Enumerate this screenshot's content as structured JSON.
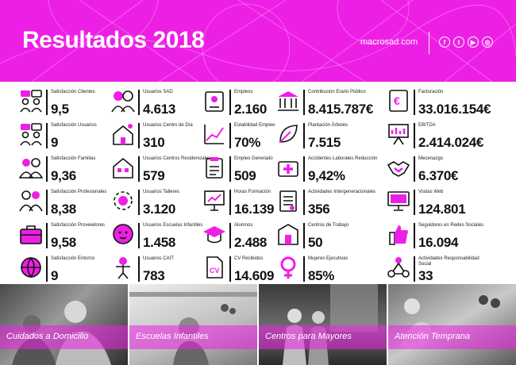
{
  "header": {
    "title": "Resultados 2018",
    "website": "macrosad.com",
    "social": [
      {
        "icon": "facebook-icon",
        "glyph": "f"
      },
      {
        "icon": "twitter-icon",
        "glyph": "t"
      },
      {
        "icon": "youtube-icon",
        "glyph": "▶"
      },
      {
        "icon": "instagram-icon",
        "glyph": "◎"
      }
    ]
  },
  "colors": {
    "accent": "#ee1fe5",
    "text": "#111111"
  },
  "stats": [
    {
      "icon": "chat-people-icon",
      "label": "Satisfacción Clientes",
      "value": "9,5"
    },
    {
      "icon": "chat-people-icon",
      "label": "Satisfacción Usuarios",
      "value": "9"
    },
    {
      "icon": "family-icon",
      "label": "Satisfacción Familias",
      "value": "9,36"
    },
    {
      "icon": "professionals-icon",
      "label": "Satisfacción Profesionales",
      "value": "8,38"
    },
    {
      "icon": "briefcase-icon",
      "label": "Satisfacción Proveedores",
      "value": "9,58"
    },
    {
      "icon": "globe-icon",
      "label": "Satisfacción Entorno",
      "value": "9"
    },
    {
      "icon": "elderly-couple-icon",
      "label": "Usuarios SAD",
      "value": "4.613"
    },
    {
      "icon": "day-center-icon",
      "label": "Usuarios Centro de Día",
      "value": "310"
    },
    {
      "icon": "residence-icon",
      "label": "Usuarios Centros Residenciales",
      "value": "579"
    },
    {
      "icon": "gear-icon",
      "label": "Usuarios Talleres",
      "value": "3.120"
    },
    {
      "icon": "baby-icon",
      "label": "Usuarios Escuelas Infantiles",
      "value": "1.458"
    },
    {
      "icon": "child-icon",
      "label": "Usuarios CAIT",
      "value": "783"
    },
    {
      "icon": "id-badge-icon",
      "label": "Empleos",
      "value": "2.160"
    },
    {
      "icon": "growth-chart-icon",
      "label": "Estabilidad Empleo",
      "value": "70%"
    },
    {
      "icon": "clipboard-icon",
      "label": "Empleo Generado",
      "value": "509"
    },
    {
      "icon": "presentation-icon",
      "label": "Horas Formación",
      "value": "16.139"
    },
    {
      "icon": "graduation-cap-icon",
      "label": "Alumnos",
      "value": "2.488"
    },
    {
      "icon": "cv-document-icon",
      "label": "CV Recibidos",
      "value": "14.609"
    },
    {
      "icon": "institution-icon",
      "label": "Contribución Erario Público",
      "value": "8.415.787€"
    },
    {
      "icon": "leaf-icon",
      "label": "Plantación Árboles",
      "value": "7.515"
    },
    {
      "icon": "first-aid-icon",
      "label": "Accidentes Laborales Reducción",
      "value": "9,42%"
    },
    {
      "icon": "checklist-icon",
      "label": "Actividades Intergeneracionales",
      "value": "356"
    },
    {
      "icon": "work-center-icon",
      "label": "Centros de Trabajo",
      "value": "50"
    },
    {
      "icon": "female-symbol-icon",
      "label": "Mujeres Ejecutivas",
      "value": "85%"
    },
    {
      "icon": "euro-document-icon",
      "label": "Facturación",
      "value": "33.016.154€"
    },
    {
      "icon": "easel-chart-icon",
      "label": "EBITDA",
      "value": "2.414.024€"
    },
    {
      "icon": "handshake-icon",
      "label": "Mecenazgo",
      "value": "6.370€"
    },
    {
      "icon": "monitor-icon",
      "label": "Visitas Web",
      "value": "124.801"
    },
    {
      "icon": "thumbs-up-icon",
      "label": "Seguidores en Redes Sociales",
      "value": "16.094"
    },
    {
      "icon": "social-network-icon",
      "label": "Actividades Responsabilidad Social",
      "value": "33"
    }
  ],
  "services": [
    {
      "name": "Cuidados a Domicilio"
    },
    {
      "name": "Escuelas Infantiles"
    },
    {
      "name": "Centros para Mayores"
    },
    {
      "name": "Atención Temprana"
    }
  ]
}
